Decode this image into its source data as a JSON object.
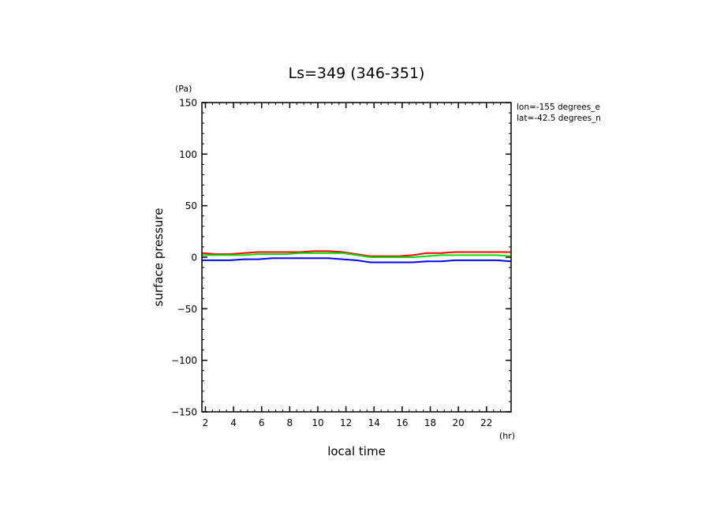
{
  "chart_data": {
    "type": "line",
    "title": "Ls=349 (346-351)",
    "xlabel": "local time",
    "ylabel": "surface pressure",
    "x_unit": "(hr)",
    "y_unit": "(Pa)",
    "xlim": [
      1.75,
      23.75
    ],
    "ylim": [
      -150,
      150
    ],
    "x_ticks": [
      2,
      4,
      6,
      8,
      10,
      12,
      14,
      16,
      18,
      20,
      22
    ],
    "y_ticks": [
      150,
      100,
      50,
      0,
      -50,
      -100,
      -150
    ],
    "grid": false,
    "annotations": [
      "lon=-155 degrees_e",
      "lat=-42.5 degrees_n"
    ],
    "x": [
      1.75,
      2.75,
      3.75,
      4.75,
      5.75,
      6.75,
      7.75,
      8.75,
      9.75,
      10.75,
      11.75,
      12.75,
      13.75,
      14.75,
      15.75,
      16.75,
      17.75,
      18.75,
      19.75,
      20.75,
      21.75,
      22.75,
      23.75
    ],
    "series": [
      {
        "color": "#ff0000",
        "values": [
          4,
          3,
          3,
          4,
          5,
          5,
          5,
          5,
          6,
          6,
          5,
          3,
          1,
          1,
          1,
          2,
          4,
          4,
          5,
          5,
          5,
          5,
          5
        ]
      },
      {
        "color": "#00dd00",
        "values": [
          2,
          2,
          2,
          2,
          3,
          3,
          3,
          4,
          4,
          4,
          4,
          2,
          0,
          0,
          0,
          0,
          1,
          2,
          2,
          2,
          2,
          2,
          1
        ]
      },
      {
        "color": "#0000ff",
        "values": [
          -3,
          -3,
          -3,
          -2,
          -2,
          -1,
          -1,
          -1,
          -1,
          -1,
          -2,
          -3,
          -5,
          -5,
          -5,
          -5,
          -4,
          -4,
          -3,
          -3,
          -3,
          -3,
          -4
        ]
      }
    ]
  }
}
